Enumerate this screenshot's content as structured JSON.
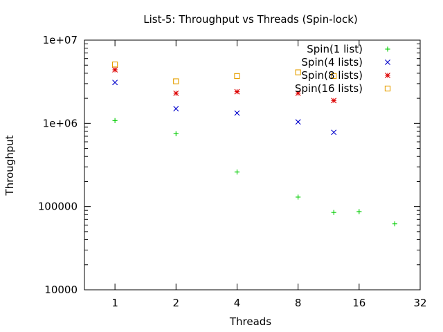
{
  "chart_data": {
    "type": "scatter",
    "title": "List-5: Throughput vs Threads (Spin-lock)",
    "xlabel": "Threads",
    "ylabel": "Throughput",
    "x_scale": "log2",
    "y_scale": "log10",
    "xlim": [
      0.707,
      32
    ],
    "ylim": [
      10000,
      10000000
    ],
    "x_ticks": [
      1,
      2,
      4,
      8,
      16,
      32
    ],
    "x_tick_labels": [
      "1",
      "2",
      "4",
      "8",
      "16",
      "32"
    ],
    "y_ticks": [
      10000,
      100000,
      1000000,
      10000000
    ],
    "y_tick_labels": [
      "10000",
      "100000",
      "1e+06",
      "1e+07"
    ],
    "grid": false,
    "legend_position": "top-right",
    "series": [
      {
        "name": "Spin(1 list)",
        "color": "#00cc00",
        "marker": "plus",
        "x": [
          1,
          2,
          4,
          8,
          12,
          16,
          24
        ],
        "y": [
          1080000,
          750000,
          260000,
          130000,
          85000,
          87000,
          62000
        ]
      },
      {
        "name": "Spin(4 lists)",
        "color": "#0000cc",
        "marker": "cross",
        "x": [
          1,
          2,
          4,
          8,
          12
        ],
        "y": [
          3100000,
          1500000,
          1330000,
          1040000,
          780000
        ]
      },
      {
        "name": "Spin(8 lists)",
        "color": "#dd0000",
        "marker": "star",
        "x": [
          1,
          2,
          4,
          8,
          12
        ],
        "y": [
          4400000,
          2300000,
          2400000,
          2300000,
          1880000
        ]
      },
      {
        "name": "Spin(16 lists)",
        "color": "#e6a000",
        "marker": "square",
        "x": [
          1,
          2,
          4,
          8,
          12
        ],
        "y": [
          5100000,
          3200000,
          3700000,
          4100000,
          3700000
        ]
      }
    ]
  }
}
